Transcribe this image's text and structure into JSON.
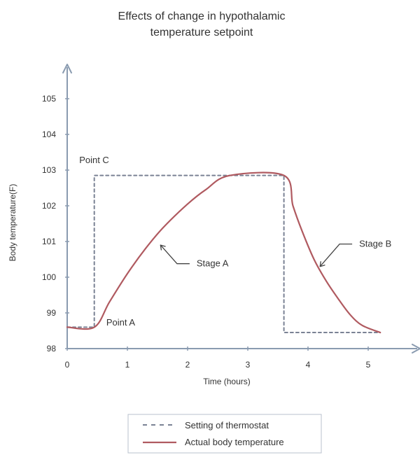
{
  "chart_data": {
    "type": "line",
    "title_lines": [
      "Effects of change in hypothalamic",
      "temperature setpoint"
    ],
    "xlabel": "Time (hours)",
    "ylabel": "Body temperature(F)",
    "xlim": [
      0,
      5.9
    ],
    "ylim": [
      98,
      106
    ],
    "xticks": [
      0,
      1,
      2,
      3,
      4,
      5
    ],
    "yticks": [
      98,
      99,
      100,
      101,
      102,
      103,
      104,
      105
    ],
    "grid": false,
    "legend_position": "bottom-center",
    "series": [
      {
        "name": "Setting of thermostat",
        "style": "dashed",
        "color": "#7a8294",
        "points": [
          [
            0,
            98.6
          ],
          [
            0.45,
            98.6
          ],
          [
            0.45,
            102.85
          ],
          [
            3.6,
            102.85
          ],
          [
            3.6,
            98.45
          ],
          [
            5.2,
            98.45
          ]
        ]
      },
      {
        "name": "Actual body temperature",
        "style": "solid",
        "color": "#b05a60",
        "points": [
          [
            0,
            98.6
          ],
          [
            0.45,
            98.6
          ],
          [
            0.7,
            99.3
          ],
          [
            1.0,
            100.1
          ],
          [
            1.3,
            100.8
          ],
          [
            1.6,
            101.4
          ],
          [
            2.0,
            102.05
          ],
          [
            2.3,
            102.45
          ],
          [
            2.7,
            102.85
          ],
          [
            3.6,
            102.85
          ],
          [
            3.75,
            102.0
          ],
          [
            3.9,
            101.3
          ],
          [
            4.1,
            100.5
          ],
          [
            4.3,
            99.9
          ],
          [
            4.5,
            99.4
          ],
          [
            4.7,
            98.95
          ],
          [
            4.9,
            98.65
          ],
          [
            5.2,
            98.45
          ]
        ]
      }
    ],
    "annotations": [
      {
        "text": "Point C",
        "x": 0.2,
        "y": 103.2
      },
      {
        "text": "Point A",
        "x": 0.65,
        "y": 98.65
      },
      {
        "text": "Stage A",
        "x": 2.15,
        "y": 100.3,
        "arrow_to": [
          1.55,
          100.9
        ]
      },
      {
        "text": "Stage B",
        "x": 4.85,
        "y": 100.85,
        "arrow_to": [
          4.2,
          100.3
        ]
      }
    ]
  },
  "colors": {
    "axis": "#8a9bb0",
    "dashed": "#7a8294",
    "solid": "#b05a60",
    "text": "#333333"
  }
}
